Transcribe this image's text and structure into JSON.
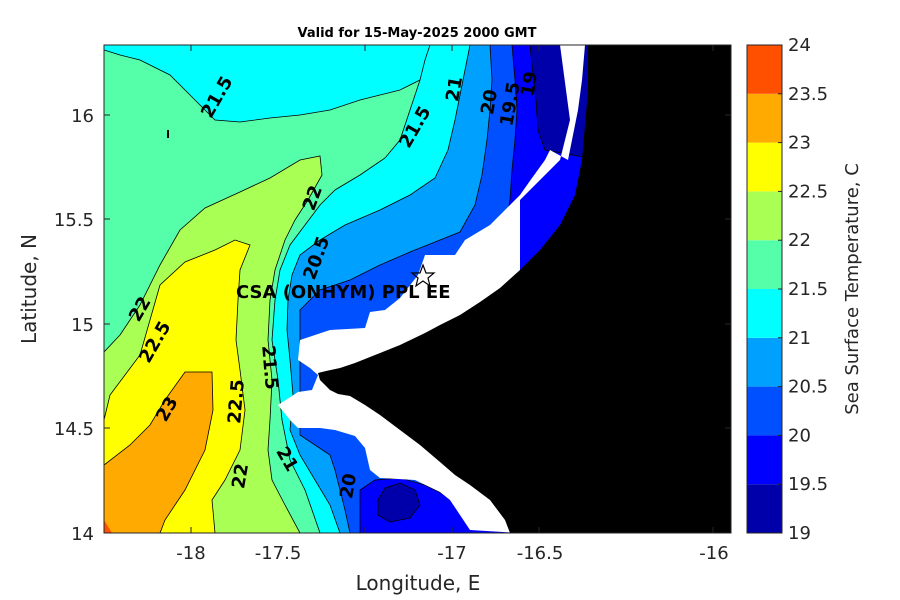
{
  "title": "Valid for 15-May-2025 2000 GMT",
  "x_axis": {
    "label": "Longitude, E",
    "range": [
      -18.35,
      -15.92
    ],
    "ticks": [
      {
        "value": -18,
        "label": "-18"
      },
      {
        "value": -17.5,
        "label": "-17.5"
      },
      {
        "value": -17,
        "label": "-17"
      },
      {
        "value": -16.5,
        "label": "-16.5"
      },
      {
        "value": -16,
        "label": "-16"
      }
    ]
  },
  "y_axis": {
    "label": "Latitude, N",
    "range": [
      14.0,
      16.33
    ],
    "ticks": [
      {
        "value": 16,
        "label": "16"
      },
      {
        "value": 15.5,
        "label": "15.5"
      },
      {
        "value": 15,
        "label": "15"
      },
      {
        "value": 14.5,
        "label": "14.5"
      },
      {
        "value": 14,
        "label": "14"
      }
    ]
  },
  "colorbar": {
    "label": "Sea Surface Temperature, C",
    "range": [
      19,
      24
    ],
    "levels": [
      {
        "from": 19.0,
        "to": 19.5,
        "color": "#0000aa"
      },
      {
        "from": 19.5,
        "to": 20.0,
        "color": "#0000ff"
      },
      {
        "from": 20.0,
        "to": 20.5,
        "color": "#0050ff"
      },
      {
        "from": 20.5,
        "to": 21.0,
        "color": "#00a0ff"
      },
      {
        "from": 21.0,
        "to": 21.5,
        "color": "#00ffff"
      },
      {
        "from": 21.5,
        "to": 22.0,
        "color": "#55ffaa"
      },
      {
        "from": 22.0,
        "to": 22.5,
        "color": "#aaff55"
      },
      {
        "from": 22.5,
        "to": 23.0,
        "color": "#ffff00"
      },
      {
        "from": 23.0,
        "to": 23.5,
        "color": "#ffaa00"
      },
      {
        "from": 23.5,
        "to": 24.0,
        "color": "#ff5000"
      }
    ],
    "tick_labels": [
      "24",
      "23.5",
      "23",
      "22.5",
      "22",
      "21.5",
      "21",
      "20.5",
      "20",
      "19.5",
      "19"
    ]
  },
  "contour_labels": [
    "21.5",
    "21",
    "20",
    "19.5",
    "19",
    "21.5",
    "22",
    "20.5",
    "22",
    "22.5",
    "21.5",
    "23",
    "22.5",
    "22",
    "21",
    "20"
  ],
  "station": {
    "label": "CSA (ONHYM) PPL EE",
    "lon": -17.1,
    "lat": 15.22,
    "marker": "star-icon"
  },
  "colors": {
    "land": "#000000",
    "nodata": "#ffffff",
    "contour_line": "#000000"
  }
}
